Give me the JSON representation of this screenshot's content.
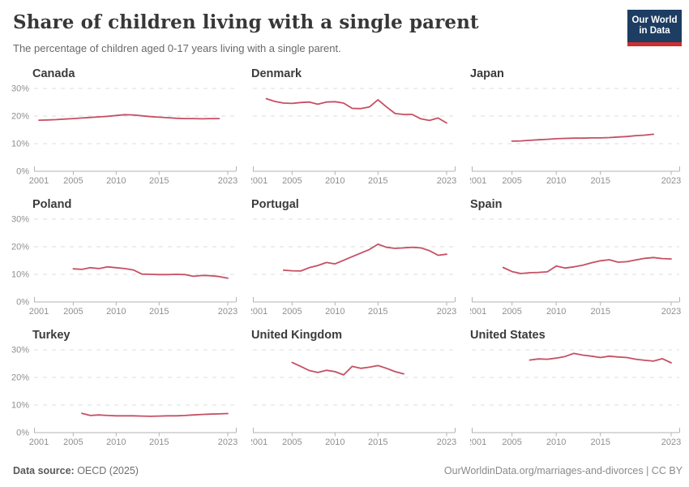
{
  "header": {
    "title": "Share of children living with a single parent",
    "subtitle": "The percentage of children aged 0-17 years living with a single parent.",
    "logo": {
      "line1": "Our World",
      "line2": "in Data",
      "bg_color": "#1d3d63",
      "bar_color": "#cc2f2f"
    }
  },
  "footer": {
    "source_label": "Data source:",
    "source_value": " OECD (2025)",
    "credit": "OurWorldinData.org/marriages-and-divorces | CC BY"
  },
  "chart_data": {
    "type": "line",
    "title": "Share of children living with a single parent",
    "subtitle": "The percentage of children aged 0-17 years living with a single parent.",
    "unit": "%",
    "x_tick_labels": [
      2001,
      2005,
      2010,
      2015,
      2023
    ],
    "x_range": [
      2001,
      2023
    ],
    "y_ticks": [
      0,
      10,
      20,
      30
    ],
    "ylim": [
      0,
      30
    ],
    "grid": "dashed horizontal",
    "legend": "none",
    "line_color": "#c55064",
    "grid_color": "#dcdcdc",
    "axis_color": "#b3b3b3",
    "tick_label_color": "#8f8f8f",
    "facet_title_color": "#3b3b3b",
    "facets": [
      {
        "name": "Canada",
        "slug": "canada",
        "start_year": 2001,
        "end_year": 2022,
        "values": [
          18.5,
          18.6,
          18.7,
          18.9,
          19.1,
          19.3,
          19.5,
          19.7,
          19.9,
          20.2,
          20.5,
          20.4,
          20.1,
          19.8,
          19.6,
          19.4,
          19.2,
          19.1,
          19.1,
          19.0,
          19.1,
          19.1
        ]
      },
      {
        "name": "Denmark",
        "slug": "denmark",
        "start_year": 2002,
        "end_year": 2023,
        "values": [
          26.3,
          25.3,
          24.7,
          24.6,
          24.9,
          25.1,
          24.3,
          25.1,
          25.2,
          24.7,
          22.8,
          22.7,
          23.3,
          25.9,
          23.3,
          20.9,
          20.6,
          20.6,
          19.0,
          18.4,
          19.3,
          17.5
        ]
      },
      {
        "name": "Japan",
        "slug": "japan",
        "start_year": 2005,
        "end_year": 2021,
        "values": [
          10.9,
          11.0,
          11.2,
          11.4,
          11.6,
          11.8,
          11.9,
          12.0,
          12.0,
          12.1,
          12.1,
          12.2,
          12.4,
          12.6,
          12.9,
          13.1,
          13.4
        ]
      },
      {
        "name": "Poland",
        "slug": "poland",
        "start_year": 2005,
        "end_year": 2023,
        "values": [
          12.0,
          11.8,
          12.4,
          12.1,
          12.7,
          12.4,
          12.1,
          11.6,
          10.1,
          10.0,
          9.9,
          9.9,
          10.0,
          9.9,
          9.3,
          9.6,
          9.5,
          9.2,
          8.6
        ]
      },
      {
        "name": "Portugal",
        "slug": "portugal",
        "start_year": 2004,
        "end_year": 2023,
        "values": [
          11.5,
          11.3,
          11.2,
          12.4,
          13.2,
          14.3,
          13.8,
          15.1,
          16.4,
          17.7,
          19.0,
          20.9,
          19.8,
          19.4,
          19.6,
          19.8,
          19.6,
          18.6,
          16.9,
          17.3
        ]
      },
      {
        "name": "Spain",
        "slug": "spain",
        "start_year": 2004,
        "end_year": 2023,
        "values": [
          12.5,
          11.0,
          10.3,
          10.6,
          10.7,
          10.9,
          13.0,
          12.3,
          12.7,
          13.3,
          14.2,
          14.9,
          15.3,
          14.4,
          14.6,
          15.2,
          15.8,
          16.1,
          15.7,
          15.6
        ]
      },
      {
        "name": "Turkey",
        "slug": "turkey",
        "start_year": 2006,
        "end_year": 2023,
        "values": [
          7.0,
          6.2,
          6.4,
          6.2,
          6.1,
          6.1,
          6.1,
          6.0,
          5.9,
          6.0,
          6.1,
          6.1,
          6.2,
          6.4,
          6.6,
          6.7,
          6.8,
          6.9
        ]
      },
      {
        "name": "United Kingdom",
        "slug": "united-kingdom",
        "start_year": 2005,
        "end_year": 2018,
        "values": [
          25.4,
          24.0,
          22.5,
          21.8,
          22.6,
          22.1,
          20.9,
          24.0,
          23.3,
          23.7,
          24.3,
          23.3,
          22.1,
          21.3
        ]
      },
      {
        "name": "United States",
        "slug": "united-states",
        "start_year": 2007,
        "end_year": 2023,
        "values": [
          26.3,
          26.7,
          26.6,
          27.0,
          27.6,
          28.7,
          28.1,
          27.7,
          27.2,
          27.7,
          27.4,
          27.2,
          26.6,
          26.2,
          25.9,
          26.8,
          25.3
        ]
      }
    ]
  }
}
